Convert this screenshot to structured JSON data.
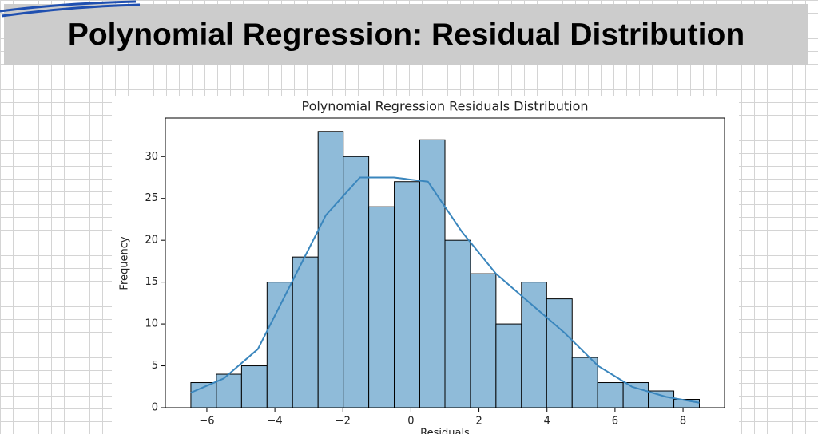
{
  "header": {
    "title": "Polynomial Regression: Residual Distribution"
  },
  "chart_data": {
    "type": "histogram",
    "title": "Polynomial Regression Residuals Distribution",
    "xlabel": "Residuals",
    "ylabel": "Frequency",
    "bins": [
      -6.47,
      -5.72,
      -4.98,
      -4.23,
      -3.48,
      -2.73,
      -1.99,
      -1.24,
      -0.49,
      0.26,
      1.0,
      1.75,
      2.5,
      3.25,
      3.99,
      4.74,
      5.49,
      6.24,
      6.98,
      7.73,
      8.48
    ],
    "counts": [
      3,
      4,
      5,
      15,
      18,
      33,
      30,
      24,
      27,
      32,
      20,
      16,
      10,
      15,
      13,
      6,
      3,
      3,
      2,
      1
    ],
    "color": "#8fbbd9",
    "edgecolor": "#000000",
    "kde": {
      "x": [
        -6.47,
        -5.5,
        -4.5,
        -3.5,
        -2.5,
        -1.5,
        -0.5,
        0.5,
        1.5,
        2.5,
        3.5,
        4.5,
        5.5,
        6.5,
        7.5,
        8.48
      ],
      "values": [
        1.8,
        3.5,
        7,
        15,
        23,
        27.5,
        27.5,
        27,
        21,
        16,
        12.5,
        9,
        5,
        2.5,
        1.3,
        0.6
      ],
      "color": "#3a86bd"
    },
    "xlim": [
      -7.22,
      9.22
    ],
    "ylim": [
      0,
      34.6
    ],
    "xticks": [
      {
        "value": -6,
        "label": "−6"
      },
      {
        "value": -4,
        "label": "−4"
      },
      {
        "value": -2,
        "label": "−2"
      },
      0,
      2,
      4,
      6,
      8
    ],
    "yticks": [
      0,
      5,
      10,
      15,
      20,
      25,
      30
    ]
  }
}
